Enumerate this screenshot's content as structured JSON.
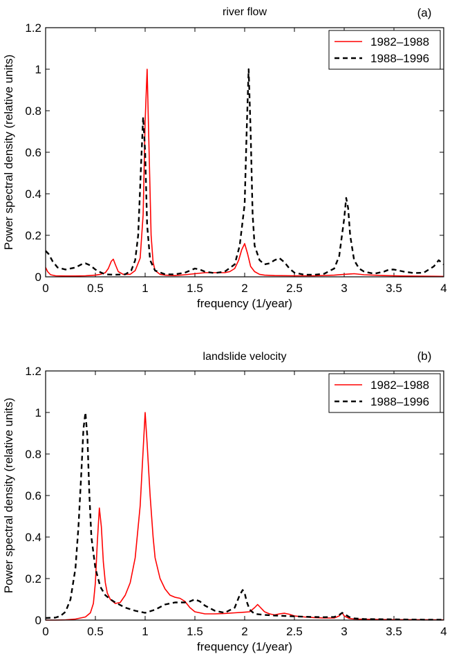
{
  "chart_data": [
    {
      "type": "line",
      "panel_label": "(a)",
      "title": "river flow",
      "xlabel": "frequency (1/year)",
      "ylabel": "Power spectral density (relative units)",
      "xlim": [
        0,
        4
      ],
      "ylim": [
        0,
        1.2
      ],
      "x_ticks": [
        "0",
        "0.5",
        "1",
        "1.5",
        "2",
        "2.5",
        "3",
        "3.5",
        "4"
      ],
      "y_ticks": [
        "0",
        "0.2",
        "0.4",
        "0.6",
        "0.8",
        "1",
        "1.2"
      ],
      "legend_position": "top-right",
      "series": [
        {
          "name": "1982–1988",
          "color": "#ff0000",
          "style": "solid",
          "x": [
            0,
            0.02,
            0.05,
            0.1,
            0.2,
            0.3,
            0.4,
            0.5,
            0.55,
            0.6,
            0.63,
            0.66,
            0.68,
            0.7,
            0.73,
            0.78,
            0.85,
            0.9,
            0.95,
            0.98,
            1.0,
            1.02,
            1.04,
            1.06,
            1.08,
            1.1,
            1.15,
            1.2,
            1.3,
            1.4,
            1.5,
            1.6,
            1.7,
            1.8,
            1.85,
            1.9,
            1.94,
            1.97,
            2.0,
            2.03,
            2.06,
            2.1,
            2.15,
            2.2,
            2.3,
            2.5,
            2.7,
            2.9,
            3.0,
            3.1,
            3.2,
            3.4,
            3.6,
            3.8,
            4.0
          ],
          "y": [
            0.045,
            0.025,
            0.01,
            0.005,
            0.004,
            0.004,
            0.005,
            0.008,
            0.012,
            0.02,
            0.04,
            0.075,
            0.085,
            0.06,
            0.025,
            0.012,
            0.012,
            0.03,
            0.09,
            0.3,
            0.75,
            1.0,
            0.6,
            0.2,
            0.07,
            0.03,
            0.012,
            0.008,
            0.006,
            0.01,
            0.015,
            0.02,
            0.02,
            0.02,
            0.025,
            0.04,
            0.08,
            0.13,
            0.16,
            0.11,
            0.05,
            0.025,
            0.012,
            0.008,
            0.006,
            0.005,
            0.005,
            0.008,
            0.012,
            0.015,
            0.01,
            0.006,
            0.004,
            0.003,
            0.002
          ]
        },
        {
          "name": "1988–1996",
          "color": "#000000",
          "style": "dashed",
          "x": [
            0,
            0.03,
            0.07,
            0.12,
            0.2,
            0.3,
            0.36,
            0.4,
            0.45,
            0.5,
            0.55,
            0.6,
            0.7,
            0.8,
            0.86,
            0.9,
            0.93,
            0.96,
            0.98,
            1.0,
            1.02,
            1.05,
            1.1,
            1.2,
            1.3,
            1.4,
            1.45,
            1.5,
            1.55,
            1.6,
            1.7,
            1.8,
            1.9,
            1.95,
            2.0,
            2.02,
            2.04,
            2.06,
            2.08,
            2.1,
            2.15,
            2.2,
            2.25,
            2.3,
            2.35,
            2.4,
            2.45,
            2.5,
            2.6,
            2.7,
            2.8,
            2.9,
            2.95,
            3.0,
            3.02,
            3.04,
            3.06,
            3.1,
            3.15,
            3.2,
            3.3,
            3.4,
            3.45,
            3.5,
            3.6,
            3.7,
            3.8,
            3.9,
            3.95,
            4.0
          ],
          "y": [
            0.125,
            0.11,
            0.075,
            0.045,
            0.035,
            0.045,
            0.06,
            0.065,
            0.055,
            0.035,
            0.022,
            0.012,
            0.01,
            0.012,
            0.03,
            0.08,
            0.2,
            0.55,
            0.77,
            0.6,
            0.25,
            0.08,
            0.03,
            0.012,
            0.012,
            0.02,
            0.03,
            0.04,
            0.035,
            0.025,
            0.018,
            0.025,
            0.06,
            0.15,
            0.35,
            0.7,
            1.0,
            0.7,
            0.3,
            0.15,
            0.08,
            0.06,
            0.065,
            0.08,
            0.09,
            0.07,
            0.04,
            0.02,
            0.01,
            0.01,
            0.015,
            0.04,
            0.1,
            0.28,
            0.38,
            0.33,
            0.2,
            0.08,
            0.04,
            0.025,
            0.015,
            0.025,
            0.035,
            0.035,
            0.025,
            0.018,
            0.02,
            0.05,
            0.08,
            0.06
          ]
        }
      ]
    },
    {
      "type": "line",
      "panel_label": "(b)",
      "title": "landslide velocity",
      "xlabel": "frequency (1/year)",
      "ylabel": "Power spectral density (relative units)",
      "xlim": [
        0,
        4
      ],
      "ylim": [
        0,
        1.2
      ],
      "x_ticks": [
        "0",
        "0.5",
        "1",
        "1.5",
        "2",
        "2.5",
        "3",
        "3.5",
        "4"
      ],
      "y_ticks": [
        "0",
        "0.2",
        "0.4",
        "0.6",
        "0.8",
        "1",
        "1.2"
      ],
      "legend_position": "top-right",
      "series": [
        {
          "name": "1982–1988",
          "color": "#ff0000",
          "style": "solid",
          "x": [
            0,
            0.1,
            0.2,
            0.3,
            0.4,
            0.45,
            0.48,
            0.5,
            0.52,
            0.54,
            0.56,
            0.58,
            0.6,
            0.62,
            0.65,
            0.7,
            0.75,
            0.8,
            0.85,
            0.9,
            0.95,
            0.98,
            1.0,
            1.02,
            1.05,
            1.08,
            1.1,
            1.15,
            1.2,
            1.25,
            1.3,
            1.35,
            1.4,
            1.45,
            1.5,
            1.6,
            1.7,
            1.8,
            1.9,
            2.0,
            2.05,
            2.1,
            2.13,
            2.16,
            2.2,
            2.25,
            2.3,
            2.35,
            2.4,
            2.45,
            2.5,
            2.6,
            2.7,
            2.8,
            2.9,
            2.95,
            2.98,
            3.0,
            3.05,
            3.1,
            3.3,
            3.5,
            3.7,
            4.0
          ],
          "y": [
            0,
            0,
            0.001,
            0.005,
            0.015,
            0.035,
            0.08,
            0.18,
            0.38,
            0.54,
            0.45,
            0.28,
            0.18,
            0.13,
            0.1,
            0.08,
            0.085,
            0.12,
            0.18,
            0.3,
            0.55,
            0.82,
            1.0,
            0.85,
            0.6,
            0.4,
            0.3,
            0.2,
            0.15,
            0.12,
            0.11,
            0.105,
            0.09,
            0.06,
            0.04,
            0.03,
            0.03,
            0.032,
            0.035,
            0.038,
            0.04,
            0.06,
            0.075,
            0.06,
            0.04,
            0.03,
            0.025,
            0.03,
            0.033,
            0.028,
            0.02,
            0.015,
            0.012,
            0.01,
            0.01,
            0.02,
            0.035,
            0.02,
            0.008,
            0.005,
            0.003,
            0.002,
            0.002,
            0.001
          ]
        },
        {
          "name": "1988–1996",
          "color": "#000000",
          "style": "dashed",
          "x": [
            0,
            0.1,
            0.15,
            0.2,
            0.25,
            0.3,
            0.33,
            0.36,
            0.38,
            0.4,
            0.42,
            0.44,
            0.46,
            0.5,
            0.55,
            0.6,
            0.65,
            0.7,
            0.8,
            0.9,
            1.0,
            1.1,
            1.2,
            1.3,
            1.4,
            1.45,
            1.5,
            1.55,
            1.6,
            1.7,
            1.8,
            1.9,
            1.95,
            1.98,
            2.0,
            2.02,
            2.05,
            2.1,
            2.2,
            2.3,
            2.4,
            2.5,
            2.6,
            2.7,
            2.8,
            2.9,
            2.95,
            2.98,
            3.0,
            3.05,
            3.1,
            3.2,
            3.4,
            3.6,
            3.8,
            4.0
          ],
          "y": [
            0.01,
            0.012,
            0.02,
            0.04,
            0.1,
            0.25,
            0.45,
            0.72,
            0.92,
            1.0,
            0.88,
            0.6,
            0.4,
            0.25,
            0.16,
            0.12,
            0.1,
            0.085,
            0.06,
            0.045,
            0.035,
            0.05,
            0.075,
            0.085,
            0.085,
            0.09,
            0.1,
            0.09,
            0.07,
            0.045,
            0.035,
            0.06,
            0.12,
            0.145,
            0.13,
            0.09,
            0.05,
            0.03,
            0.025,
            0.022,
            0.02,
            0.018,
            0.016,
            0.015,
            0.014,
            0.015,
            0.025,
            0.035,
            0.03,
            0.015,
            0.008,
            0.005,
            0.004,
            0.003,
            0.002,
            0.002
          ]
        }
      ]
    }
  ]
}
